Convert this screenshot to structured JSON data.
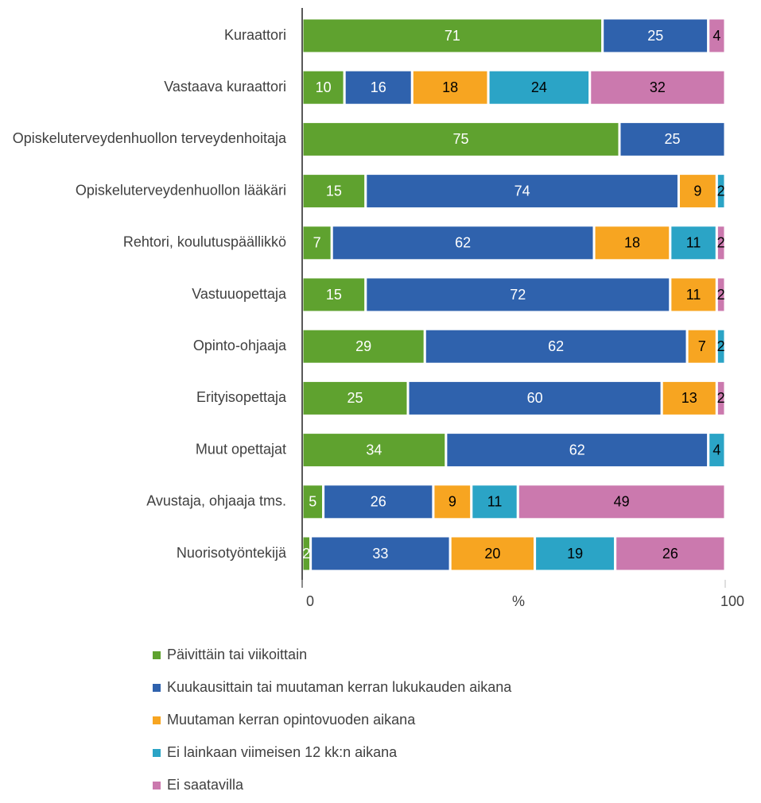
{
  "chart_data": {
    "type": "stacked_barh",
    "categories": [
      "Kuraattori",
      "Vastaava kuraattori",
      "Opiskeluterveydenhuollon terveydenhoitaja",
      "Opiskeluterveydenhuollon lääkäri",
      "Rehtori, koulutuspäällikkö",
      "Vastuuopettaja",
      "Opinto-ohjaaja",
      "Erityisopettaja",
      "Muut opettajat",
      "Avustaja, ohjaaja tms.",
      "Nuorisotyöntekijä"
    ],
    "series": [
      {
        "name": "Päivittäin tai viikoittain",
        "color": "#5fa22f",
        "label_color": "#ffffff",
        "values": [
          71,
          10,
          75,
          15,
          7,
          15,
          29,
          25,
          34,
          5,
          2
        ]
      },
      {
        "name": "Kuukausittain tai muutaman kerran lukukauden aikana",
        "color": "#2f62ad",
        "label_color": "#ffffff",
        "values": [
          25,
          16,
          25,
          74,
          62,
          72,
          62,
          60,
          62,
          26,
          33
        ]
      },
      {
        "name": "Muutaman kerran opintovuoden aikana",
        "color": "#f7a521",
        "label_color": "#000000",
        "values": [
          null,
          18,
          null,
          9,
          18,
          11,
          7,
          13,
          null,
          9,
          20
        ]
      },
      {
        "name": "Ei lainkaan viimeisen 12 kk:n aikana",
        "color": "#2ba4c6",
        "label_color": "#000000",
        "values": [
          null,
          24,
          null,
          2,
          11,
          null,
          2,
          null,
          4,
          11,
          19
        ]
      },
      {
        "name": "Ei saatavilla",
        "color": "#cb79ae",
        "label_color": "#000000",
        "values": [
          4,
          32,
          null,
          null,
          2,
          2,
          null,
          2,
          null,
          49,
          26
        ]
      }
    ],
    "xlabel": "%",
    "xlim": [
      0,
      100
    ],
    "xticks": [
      0,
      100
    ]
  }
}
